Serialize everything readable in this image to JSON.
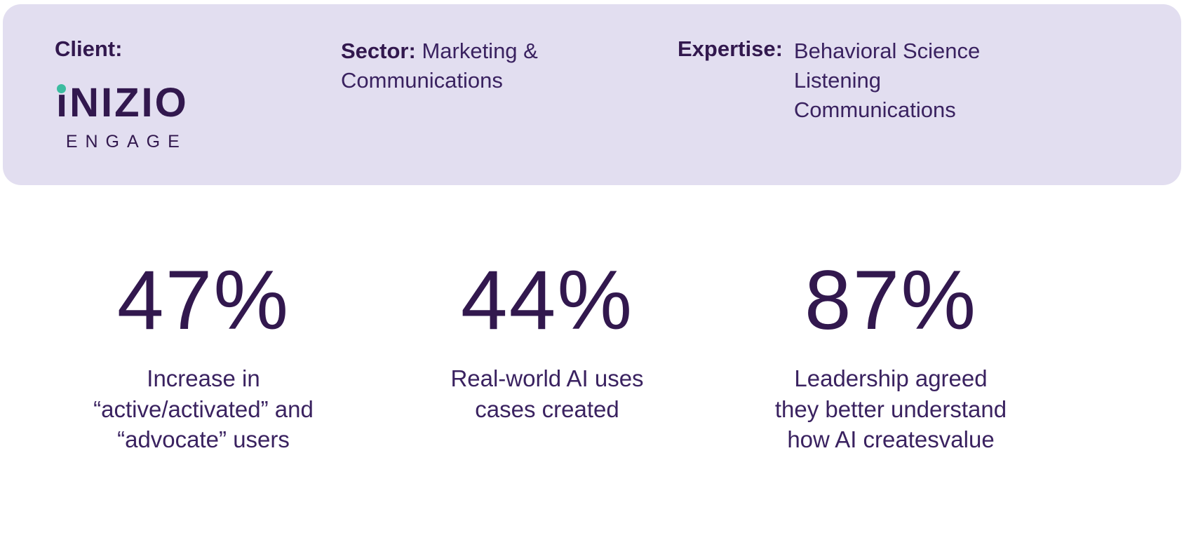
{
  "banner": {
    "client_label": "Client:",
    "logo": {
      "wordmark_rest": "NIZIO",
      "subtext": "ENGAGE"
    },
    "sector_label": "Sector:",
    "sector_value": "Marketing & Communications",
    "expertise_label": "Expertise:",
    "expertise_values": [
      "Behavioral Science",
      "Listening",
      "Communications"
    ]
  },
  "stats": [
    {
      "value": "47%",
      "lines": [
        "Increase in",
        "“active/activated” and",
        "“advocate” users"
      ]
    },
    {
      "value": "44%",
      "lines": [
        "Real-world AI uses",
        "cases created"
      ]
    },
    {
      "value": "87%",
      "lines": [
        "Leadership agreed",
        "they better understand",
        "how AI createsvalue"
      ]
    }
  ],
  "colors": {
    "banner_background": "#e2def0",
    "text_primary": "#32184e",
    "logo_dot": "#3cbca0"
  }
}
